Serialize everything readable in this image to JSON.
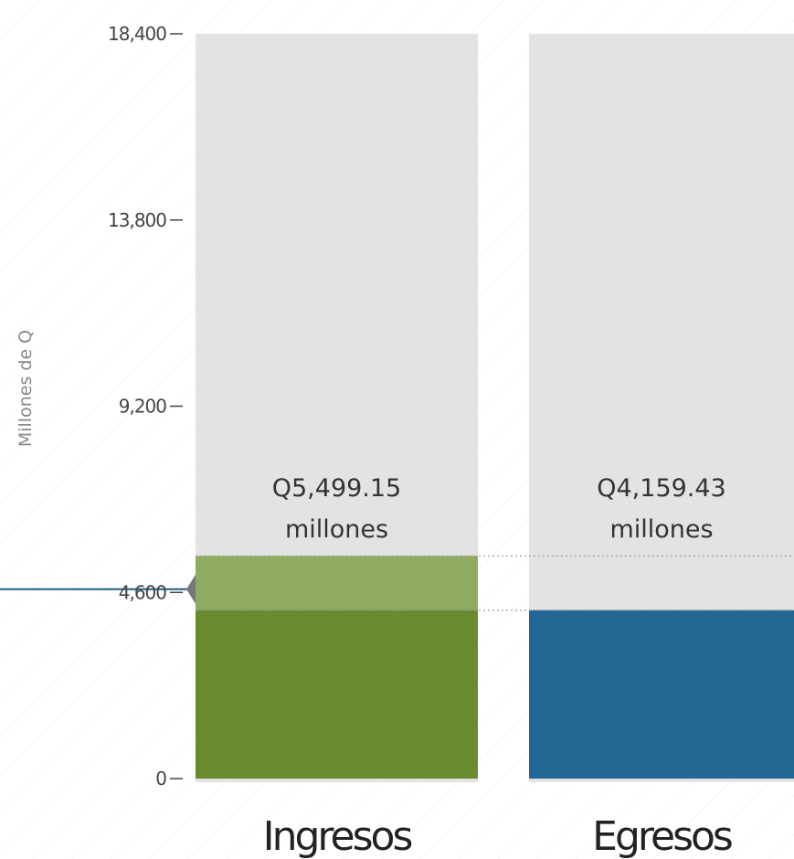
{
  "chart_data": {
    "type": "bar",
    "ylabel": "Millones de Q",
    "ylim": [
      0,
      18400
    ],
    "yticks": [
      0,
      4600,
      9200,
      13800,
      18400
    ],
    "ytick_labels": [
      "0",
      "4,600",
      "9,200",
      "13,800",
      "18,400"
    ],
    "categories": [
      "Ingresos",
      "Egresos"
    ],
    "values": [
      5499.15,
      4159.43
    ],
    "value_labels": [
      {
        "amount": "Q5,499.15",
        "unit": "millones"
      },
      {
        "amount": "Q4,159.43",
        "unit": "millones"
      }
    ],
    "marker_value": 4159.43,
    "grid": false,
    "legend": "none"
  },
  "colors": {
    "ingresos": "#688b2e",
    "ingresos_overlap": "#8fab62",
    "egresos": "#236795",
    "bar_background": "#e3e3e3",
    "marker_line": "#1f5f7e",
    "marker_arrow": "#777777"
  }
}
